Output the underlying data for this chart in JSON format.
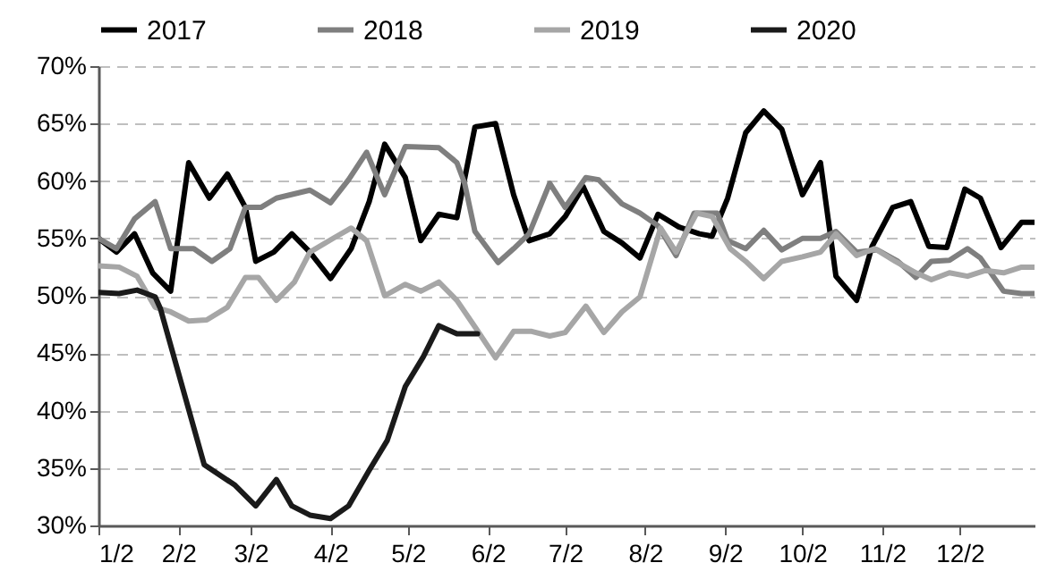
{
  "chart_data": {
    "type": "line",
    "legend": "top",
    "grid": "y",
    "marker": "none",
    "line_style": "solid",
    "xlim": [
      "--01-02",
      "--12-31"
    ],
    "xticks": [
      {
        "value": "--01-02",
        "label": "1/2"
      },
      {
        "value": "--02-02",
        "label": "2/2"
      },
      {
        "value": "--03-02",
        "label": "3/2"
      },
      {
        "value": "--04-02",
        "label": "4/2"
      },
      {
        "value": "--05-02",
        "label": "5/2"
      },
      {
        "value": "--06-02",
        "label": "6/2"
      },
      {
        "value": "--07-02",
        "label": "7/2"
      },
      {
        "value": "--08-02",
        "label": "8/2"
      },
      {
        "value": "--09-02",
        "label": "9/2"
      },
      {
        "value": "--10-02",
        "label": "10/2"
      },
      {
        "value": "--11-02",
        "label": "11/2"
      },
      {
        "value": "--12-02",
        "label": "12/2"
      }
    ],
    "ylim": [
      30,
      70
    ],
    "yticks": [
      {
        "value": 30,
        "label": "30%"
      },
      {
        "value": 35,
        "label": "35%"
      },
      {
        "value": 40,
        "label": "40%"
      },
      {
        "value": 45,
        "label": "45%"
      },
      {
        "value": 50,
        "label": "50%"
      },
      {
        "value": 55,
        "label": "55%"
      },
      {
        "value": 60,
        "label": "60%"
      },
      {
        "value": 65,
        "label": "65%"
      },
      {
        "value": 70,
        "label": "70%"
      }
    ],
    "series": [
      {
        "name": "2017",
        "color": "#000000",
        "x": [
          "--01-02",
          "--01-09",
          "--01-16",
          "--01-23",
          "--01-30",
          "--02-06",
          "--02-14",
          "--02-21",
          "--02-28",
          "--03-04",
          "--03-11",
          "--03-18",
          "--03-25",
          "--04-02",
          "--04-10",
          "--04-17",
          "--04-23",
          "--05-01",
          "--05-07",
          "--05-14",
          "--05-21",
          "--05-28",
          "--06-05",
          "--06-12",
          "--06-18",
          "--06-26",
          "--07-02",
          "--07-09",
          "--07-17",
          "--07-24",
          "--07-31",
          "--08-07",
          "--08-15",
          "--08-23",
          "--08-28",
          "--09-03",
          "--09-10",
          "--09-17",
          "--09-24",
          "--10-02",
          "--10-09",
          "--10-15",
          "--10-23",
          "--10-29",
          "--11-06",
          "--11-13",
          "--11-20",
          "--11-27",
          "--12-04",
          "--12-10",
          "--12-18",
          "--12-26",
          "--12-31"
        ],
        "values": [
          55.0,
          53.8,
          55.4,
          52.0,
          50.4,
          61.6,
          58.5,
          60.6,
          57.7,
          53.0,
          53.8,
          55.4,
          53.8,
          51.5,
          54.1,
          58.2,
          63.2,
          60.3,
          54.8,
          57.1,
          56.8,
          64.7,
          65.0,
          58.8,
          54.8,
          55.4,
          56.9,
          59.5,
          55.6,
          54.6,
          53.3,
          57.1,
          56.0,
          55.4,
          55.2,
          58.5,
          64.2,
          66.1,
          64.5,
          58.8,
          61.6,
          51.7,
          49.6,
          54.3,
          57.7,
          58.2,
          54.3,
          54.2,
          59.3,
          58.5,
          54.2,
          56.4,
          56.4
        ]
      },
      {
        "name": "2018",
        "color": "#7f7f7f",
        "x": [
          "--01-02",
          "--01-09",
          "--01-16",
          "--01-24",
          "--01-30",
          "--02-08",
          "--02-15",
          "--02-22",
          "--02-28",
          "--03-06",
          "--03-12",
          "--03-25",
          "--04-02",
          "--04-09",
          "--04-16",
          "--04-23",
          "--05-01",
          "--05-14",
          "--05-21",
          "--05-24",
          "--05-28",
          "--06-06",
          "--06-12",
          "--06-18",
          "--06-26",
          "--07-02",
          "--07-10",
          "--07-15",
          "--07-24",
          "--07-31",
          "--08-07",
          "--08-14",
          "--08-21",
          "--08-30",
          "--09-03",
          "--09-10",
          "--09-17",
          "--09-24",
          "--10-02",
          "--10-09",
          "--10-15",
          "--10-23",
          "--10-31",
          "--11-08",
          "--11-15",
          "--11-21",
          "--11-28",
          "--12-05",
          "--12-10",
          "--12-19",
          "--12-26",
          "--12-31"
        ],
        "values": [
          55.0,
          54.1,
          56.7,
          58.2,
          54.1,
          54.1,
          53.0,
          54.1,
          57.7,
          57.7,
          58.5,
          59.2,
          58.1,
          60.1,
          62.5,
          58.8,
          63.0,
          62.9,
          61.6,
          59.8,
          55.6,
          52.9,
          54.1,
          55.4,
          59.8,
          57.7,
          60.3,
          60.1,
          58.0,
          57.2,
          56.1,
          53.5,
          57.2,
          57.2,
          54.8,
          54.1,
          55.7,
          54.0,
          55.0,
          55.0,
          55.6,
          53.8,
          54.0,
          53.0,
          51.6,
          53.0,
          53.1,
          54.1,
          53.3,
          50.4,
          50.2,
          50.2
        ]
      },
      {
        "name": "2019",
        "color": "#a6a6a6",
        "x": [
          "--01-02",
          "--01-10",
          "--01-17",
          "--01-24",
          "--01-30",
          "--02-06",
          "--02-13",
          "--02-21",
          "--02-28",
          "--03-05",
          "--03-12",
          "--03-19",
          "--03-25",
          "--04-03",
          "--04-10",
          "--04-16",
          "--04-23",
          "--05-01",
          "--05-07",
          "--05-14",
          "--05-21",
          "--05-28",
          "--06-05",
          "--06-12",
          "--06-19",
          "--06-26",
          "--07-02",
          "--07-10",
          "--07-17",
          "--07-24",
          "--07-31",
          "--08-08",
          "--08-14",
          "--08-22",
          "--08-28",
          "--09-04",
          "--09-10",
          "--09-17",
          "--09-24",
          "--10-02",
          "--10-09",
          "--10-15",
          "--10-23",
          "--10-30",
          "--11-07",
          "--11-15",
          "--11-21",
          "--11-28",
          "--12-05",
          "--12-12",
          "--12-19",
          "--12-26",
          "--12-31"
        ],
        "values": [
          52.6,
          52.5,
          51.7,
          49.0,
          48.6,
          47.8,
          47.9,
          49.0,
          51.6,
          51.6,
          49.6,
          51.2,
          53.8,
          55.0,
          55.9,
          54.8,
          50.0,
          51.0,
          50.4,
          51.2,
          49.6,
          47.3,
          44.6,
          46.9,
          46.9,
          46.5,
          46.8,
          49.1,
          46.8,
          48.6,
          49.9,
          55.9,
          53.8,
          57.2,
          56.9,
          54.1,
          53.0,
          51.5,
          53.0,
          53.4,
          53.8,
          55.4,
          53.5,
          54.1,
          53.0,
          52.0,
          51.4,
          52.0,
          51.7,
          52.2,
          52.0,
          52.5,
          52.5
        ]
      },
      {
        "name": "2020",
        "color": "#1a1a1a",
        "x": [
          "--01-02",
          "--01-10",
          "--01-17",
          "--01-24",
          "--01-26",
          "--02-12",
          "--02-24",
          "--03-04",
          "--03-12",
          "--03-18",
          "--03-25",
          "--04-02",
          "--04-09",
          "--04-17",
          "--04-24",
          "--05-01",
          "--05-08",
          "--05-14",
          "--05-21",
          "--05-29"
        ],
        "values": [
          50.3,
          50.2,
          50.5,
          49.9,
          48.9,
          35.3,
          33.5,
          31.7,
          34.0,
          31.7,
          30.9,
          30.6,
          31.7,
          34.8,
          37.4,
          42.1,
          44.7,
          47.4,
          46.7,
          46.7
        ]
      }
    ]
  }
}
